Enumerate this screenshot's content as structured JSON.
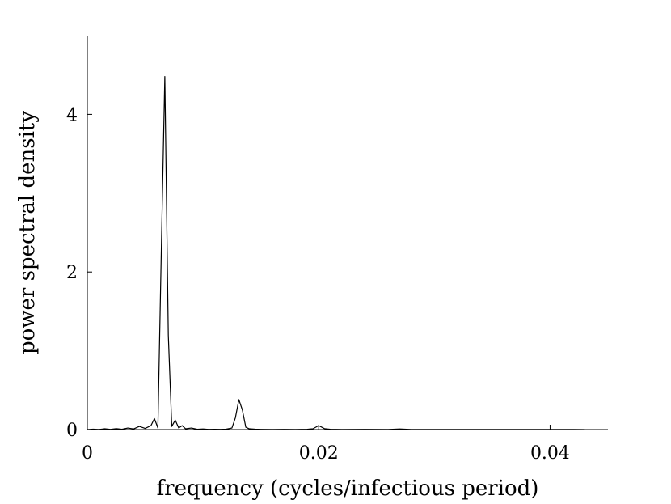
{
  "chart_data": {
    "type": "line",
    "title": "",
    "xlabel": "frequency (cycles/infectious period)",
    "ylabel": "power spectral density",
    "xlim": [
      0,
      0.045
    ],
    "ylim": [
      0,
      5
    ],
    "xticks": [
      0,
      0.02,
      0.04
    ],
    "xtick_labels": [
      "0",
      "0.02",
      "0.04"
    ],
    "yticks": [
      0,
      2,
      4
    ],
    "ytick_labels": [
      "0",
      "2",
      "4"
    ],
    "grid": false,
    "series": [
      {
        "color": "#000000",
        "x": [
          0,
          0.0005,
          0.001,
          0.0015,
          0.002,
          0.0025,
          0.003,
          0.0035,
          0.004,
          0.0045,
          0.005,
          0.0055,
          0.0058,
          0.0061,
          0.0064,
          0.0067,
          0.007,
          0.0073,
          0.0076,
          0.0079,
          0.0082,
          0.0085,
          0.009,
          0.0095,
          0.01,
          0.0105,
          0.011,
          0.0115,
          0.012,
          0.0125,
          0.0128,
          0.0131,
          0.0134,
          0.0137,
          0.014,
          0.0145,
          0.015,
          0.016,
          0.017,
          0.018,
          0.019,
          0.0195,
          0.02,
          0.0205,
          0.021,
          0.022,
          0.024,
          0.026,
          0.027,
          0.028,
          0.03,
          0.032,
          0.034,
          0.036,
          0.038,
          0.04,
          0.042,
          0.043
        ],
        "y": [
          0,
          0.005,
          0.002,
          0.01,
          0.003,
          0.012,
          0.004,
          0.02,
          0.008,
          0.04,
          0.015,
          0.05,
          0.14,
          0.02,
          2.3,
          4.48,
          1.2,
          0.04,
          0.12,
          0.02,
          0.05,
          0.01,
          0.02,
          0.004,
          0.008,
          0.003,
          0.004,
          0.003,
          0.005,
          0.02,
          0.15,
          0.38,
          0.25,
          0.03,
          0.01,
          0.005,
          0.003,
          0.002,
          0.003,
          0.002,
          0.004,
          0.01,
          0.05,
          0.012,
          0.004,
          0.002,
          0.003,
          0.002,
          0.008,
          0.002,
          0.001,
          0.002,
          0.001,
          0.001,
          0.001,
          0.001,
          0.001,
          0
        ]
      }
    ]
  }
}
